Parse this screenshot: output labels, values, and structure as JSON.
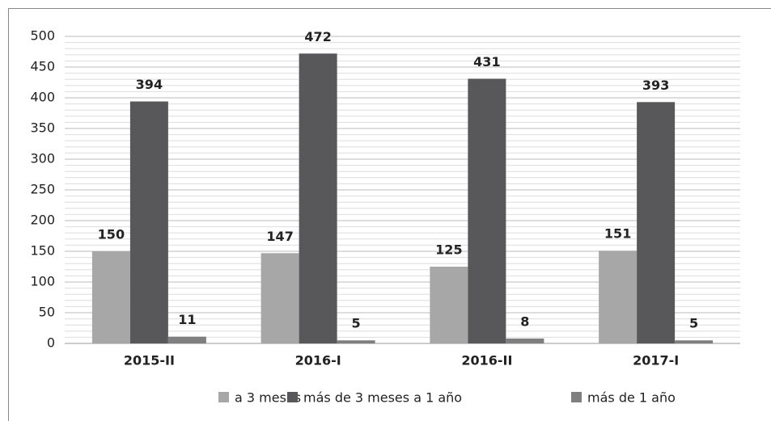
{
  "chart_data": {
    "type": "bar",
    "categories": [
      "2015-II",
      "2016-I",
      "2016-II",
      "2017-I"
    ],
    "series": [
      {
        "name": "a 3 meses",
        "color": "#a7a7a8",
        "values": [
          150,
          147,
          125,
          151
        ]
      },
      {
        "name": "más de 3 meses a 1 año",
        "color": "#58585a",
        "values": [
          394,
          472,
          431,
          393
        ]
      },
      {
        "name": "más de 1 año",
        "color": "#7f7f80",
        "values": [
          11,
          5,
          8,
          5
        ]
      }
    ],
    "ylim": [
      0,
      500
    ],
    "yticks": [
      0,
      50,
      100,
      150,
      200,
      250,
      300,
      350,
      400,
      450,
      500
    ],
    "minor_yticks": [
      10,
      20,
      30,
      40,
      60,
      70,
      80,
      90,
      110,
      120,
      130,
      140,
      160,
      170,
      180,
      190,
      210,
      220,
      230,
      240,
      260,
      270,
      280,
      290,
      310,
      320,
      330,
      340,
      360,
      370,
      380,
      390,
      410,
      420,
      430,
      440,
      460,
      470,
      480,
      490
    ],
    "grid": true,
    "legend": "bottom"
  }
}
